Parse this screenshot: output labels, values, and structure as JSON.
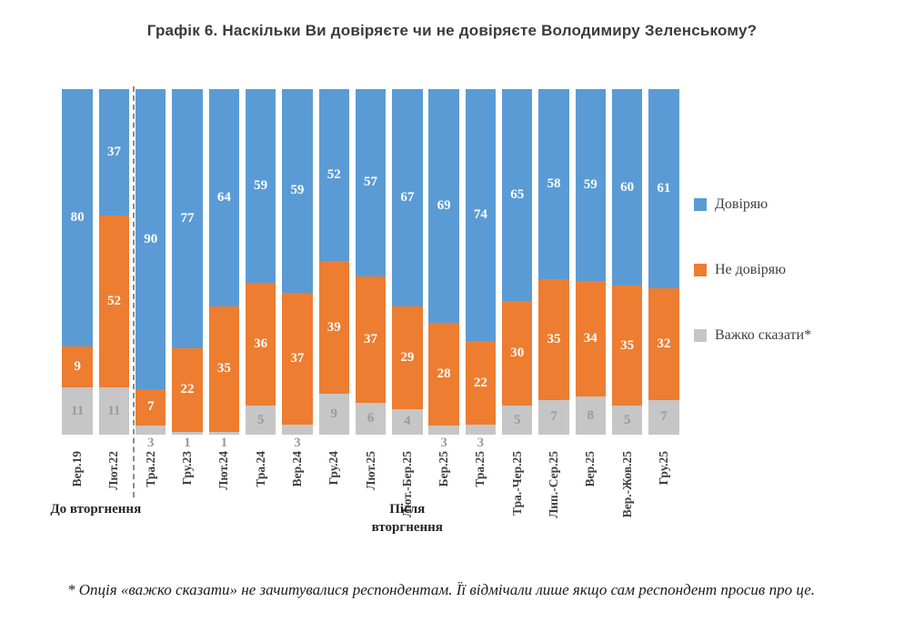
{
  "title": "Графік 6. Наскільки Ви довіряєте чи не довіряєте Володимиру Зеленському?",
  "chart_data": {
    "type": "bar",
    "stacked": true,
    "percent": true,
    "ylim": [
      0,
      100
    ],
    "legend_position": "right",
    "categories": [
      "Вер.19",
      "Лют.22",
      "Тра.22",
      "Гру.23",
      "Лют.24",
      "Тра.24",
      "Вер.24",
      "Гру.24",
      "Лют.25",
      "Лют.-Бер.25",
      "Бер.25",
      "Тра.25",
      "Тра.-Чер.25",
      "Лип.-Сер.25",
      "Вер.25",
      "Вер.-Жов.25",
      "Гру.25"
    ],
    "series": [
      {
        "name": "Довіряю",
        "color": "#5B9BD5",
        "label_color": "#FFFFFF",
        "values": [
          80,
          37,
          90,
          77,
          64,
          59,
          59,
          52,
          57,
          67,
          69,
          74,
          65,
          58,
          59,
          60,
          61
        ]
      },
      {
        "name": "Не довіряю",
        "color": "#ED7D31",
        "label_color": "#FFFFFF",
        "values": [
          9,
          52,
          7,
          22,
          35,
          36,
          37,
          39,
          37,
          29,
          28,
          22,
          30,
          35,
          34,
          35,
          32
        ]
      },
      {
        "name": "Важко сказати*",
        "color": "#C6C6C6",
        "label_color": "#9B9B9B",
        "values": [
          11,
          11,
          3,
          1,
          1,
          5,
          3,
          9,
          6,
          4,
          3,
          3,
          5,
          7,
          8,
          5,
          7
        ]
      }
    ],
    "separator_after": 1,
    "groups": [
      {
        "label": "До вторгнення",
        "from": 0,
        "to": 1
      },
      {
        "label": "Після вторгнення",
        "from": 2,
        "to": 16
      }
    ]
  },
  "footnote": "* Опція «важко сказати» не зачитувалися респондентам. Її відмічали лише якщо сам респондент просив про це."
}
